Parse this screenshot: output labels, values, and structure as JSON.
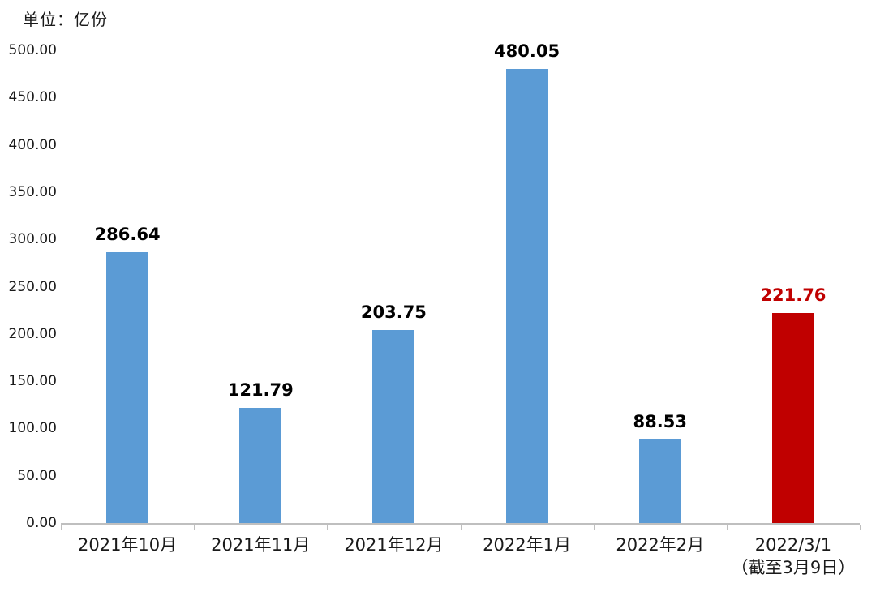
{
  "chart_data": {
    "type": "bar",
    "title": "",
    "unit_label": "单位：亿份",
    "categories": [
      "2021年10月",
      "2021年11月",
      "2021年12月",
      "2022年1月",
      "2022年2月",
      "2022/3/1\n（截至3月9日）"
    ],
    "values": [
      286.64,
      121.79,
      203.75,
      480.05,
      88.53,
      221.76
    ],
    "value_labels": [
      "286.64",
      "121.79",
      "203.75",
      "480.05",
      "88.53",
      "221.76"
    ],
    "y_tick_values": [
      0,
      50,
      100,
      150,
      200,
      250,
      300,
      350,
      400,
      450,
      500
    ],
    "y_tick_labels": [
      "0.00",
      "50.00",
      "100.00",
      "150.00",
      "200.00",
      "250.00",
      "300.00",
      "350.00",
      "400.00",
      "450.00",
      "500.00"
    ],
    "ylim": [
      0,
      500
    ],
    "grid": false,
    "legend": "none",
    "highlight_index": 5,
    "colors": {
      "bar": "#5B9BD5",
      "highlight_bar": "#C00000",
      "data_label": "#000000",
      "highlight_data_label": "#C00000",
      "axis": "#BFBFBF",
      "text": "#1A1A1A"
    }
  }
}
